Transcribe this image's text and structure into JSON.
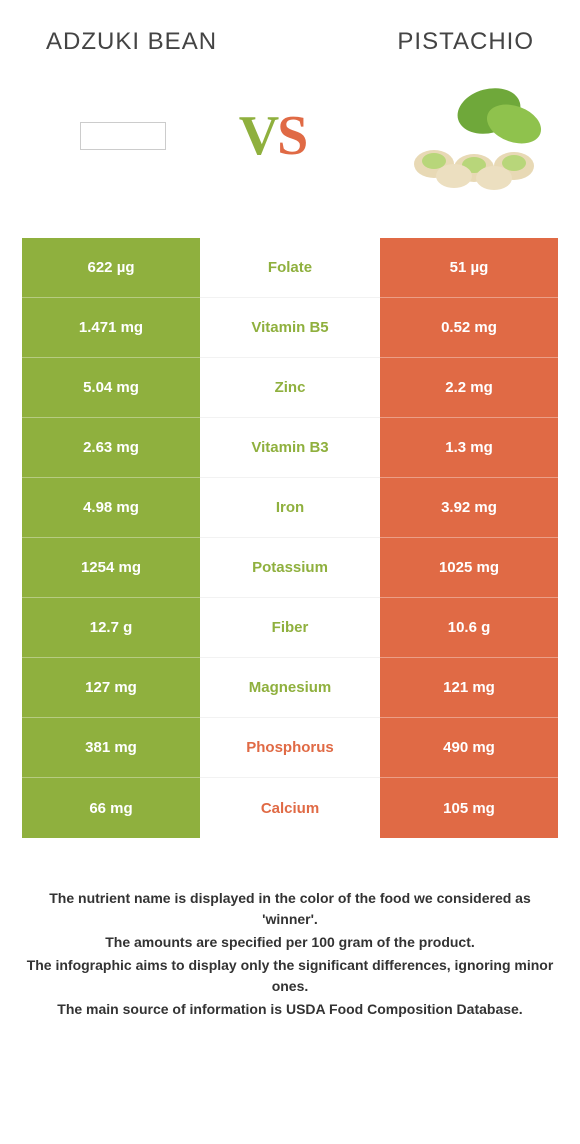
{
  "header": {
    "left_title": "Adzuki bean",
    "right_title": "Pistachio"
  },
  "vs": {
    "v": "V",
    "s": "S"
  },
  "colors": {
    "left_bg": "#8fb03e",
    "right_bg": "#e06a45",
    "left_text": "#8fb03e",
    "right_text": "#e06a45"
  },
  "rows": [
    {
      "left": "622 µg",
      "label": "Folate",
      "right": "51 µg",
      "winner": "left"
    },
    {
      "left": "1.471 mg",
      "label": "Vitamin B5",
      "right": "0.52 mg",
      "winner": "left"
    },
    {
      "left": "5.04 mg",
      "label": "Zinc",
      "right": "2.2 mg",
      "winner": "left"
    },
    {
      "left": "2.63 mg",
      "label": "Vitamin B3",
      "right": "1.3 mg",
      "winner": "left"
    },
    {
      "left": "4.98 mg",
      "label": "Iron",
      "right": "3.92 mg",
      "winner": "left"
    },
    {
      "left": "1254 mg",
      "label": "Potassium",
      "right": "1025 mg",
      "winner": "left"
    },
    {
      "left": "12.7 g",
      "label": "Fiber",
      "right": "10.6 g",
      "winner": "left"
    },
    {
      "left": "127 mg",
      "label": "Magnesium",
      "right": "121 mg",
      "winner": "left"
    },
    {
      "left": "381 mg",
      "label": "Phosphorus",
      "right": "490 mg",
      "winner": "right"
    },
    {
      "left": "66 mg",
      "label": "Calcium",
      "right": "105 mg",
      "winner": "right"
    }
  ],
  "footnotes": [
    "The nutrient name is displayed in the color of the food we considered as 'winner'.",
    "The amounts are specified per 100 gram of the product.",
    "The infographic aims to display only the significant differences, ignoring minor ones.",
    "The main source of information is USDA Food Composition Database."
  ]
}
